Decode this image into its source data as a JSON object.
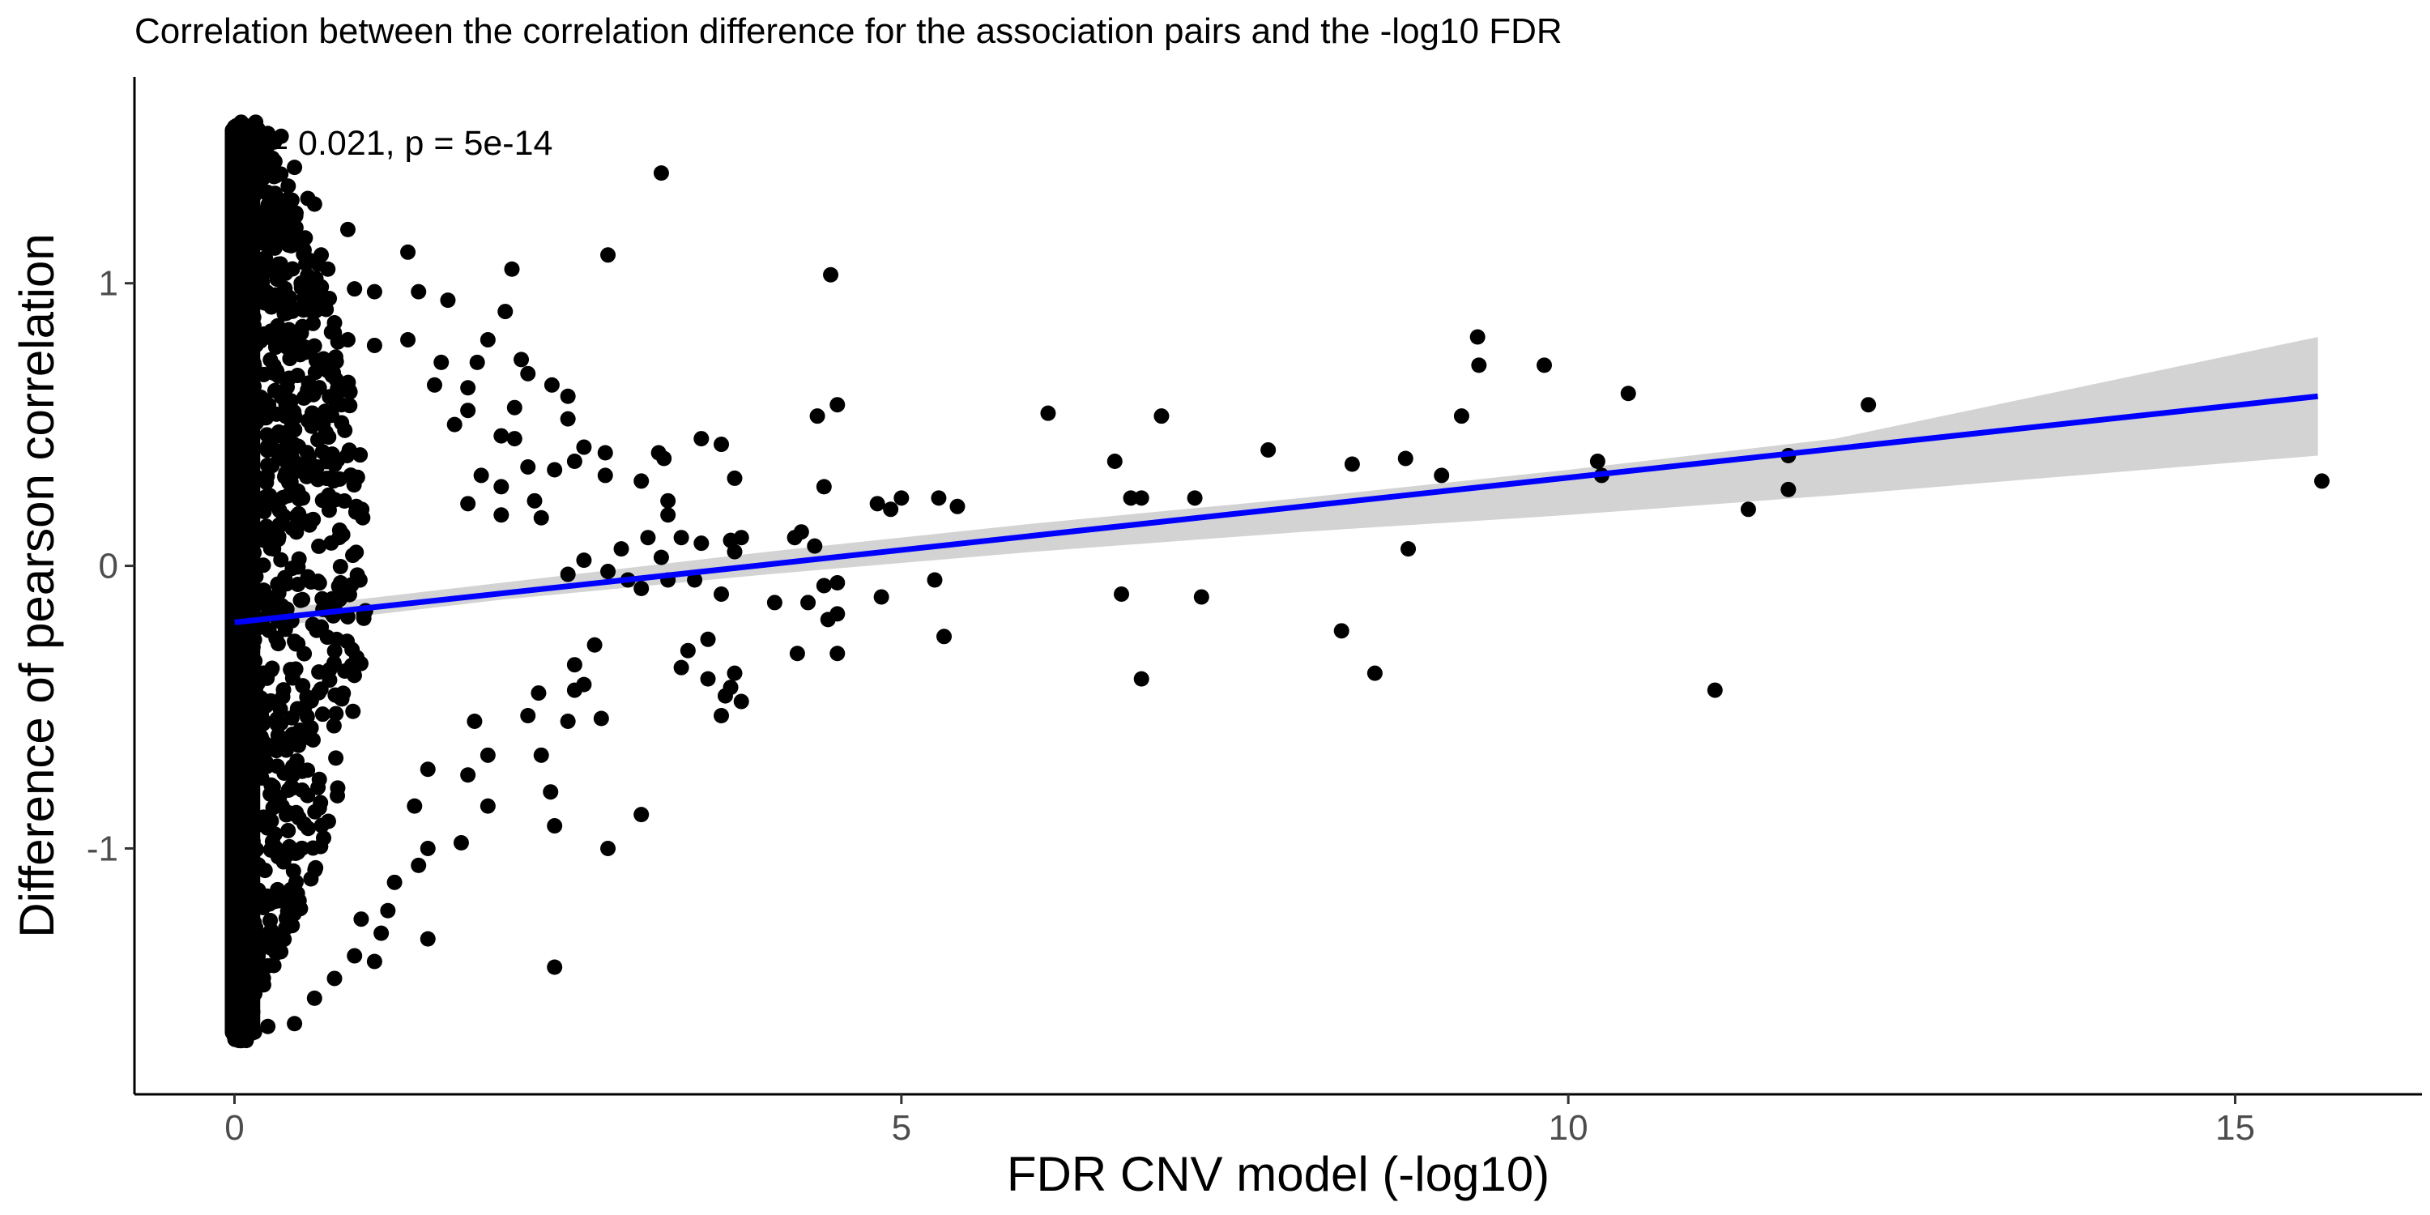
{
  "chart_data": {
    "type": "scatter",
    "title": "Correlation between the correlation difference for the association pairs and the -log10 FDR",
    "xlabel": "FDR CNV model (-log10)",
    "ylabel": "Difference of pearson correlation",
    "annotation": "R = 0.021, p = 5e-14",
    "xlim": [
      -0.75,
      16.4
    ],
    "ylim": [
      -1.87,
      1.73
    ],
    "x_ticks": [
      0,
      5,
      10,
      15
    ],
    "x_tick_labels": [
      "0",
      "5",
      "10",
      "15"
    ],
    "y_ticks": [
      -1,
      0,
      1
    ],
    "y_tick_labels": [
      "-1",
      "0",
      "1"
    ],
    "grid": false,
    "legend": "none",
    "dense_cluster": {
      "x_range": [
        0,
        1.0
      ],
      "y_range": [
        -1.68,
        1.57
      ],
      "description": "many overlapping points near x = 0"
    },
    "points": [
      [
        0.05,
        1.57
      ],
      [
        0.15,
        1.52
      ],
      [
        0.25,
        1.53
      ],
      [
        0.35,
        1.52
      ],
      [
        0.3,
        1.5
      ],
      [
        0.2,
        1.49
      ],
      [
        0.45,
        1.41
      ],
      [
        0.55,
        1.3
      ],
      [
        0.6,
        1.28
      ],
      [
        0.85,
        1.19
      ],
      [
        0.65,
        1.1
      ],
      [
        0.7,
        1.05
      ],
      [
        0.5,
        1.0
      ],
      [
        0.9,
        0.98
      ],
      [
        0.65,
        0.93
      ],
      [
        0.75,
        0.86
      ],
      [
        0.85,
        0.8
      ],
      [
        1.05,
        0.97
      ],
      [
        1.05,
        0.78
      ],
      [
        1.3,
        1.11
      ],
      [
        1.38,
        0.97
      ],
      [
        1.6,
        0.94
      ],
      [
        1.3,
        0.8
      ],
      [
        1.55,
        0.72
      ],
      [
        1.5,
        0.64
      ],
      [
        1.82,
        0.72
      ],
      [
        1.75,
        0.63
      ],
      [
        1.9,
        0.8
      ],
      [
        2.08,
        1.05
      ],
      [
        2.03,
        0.9
      ],
      [
        2.15,
        0.73
      ],
      [
        2.2,
        0.68
      ],
      [
        2.38,
        0.64
      ],
      [
        2.5,
        0.6
      ],
      [
        2.1,
        0.56
      ],
      [
        1.75,
        0.55
      ],
      [
        1.65,
        0.5
      ],
      [
        2.0,
        0.46
      ],
      [
        2.1,
        0.45
      ],
      [
        2.5,
        0.52
      ],
      [
        2.62,
        0.42
      ],
      [
        2.8,
        1.1
      ],
      [
        2.78,
        0.4
      ],
      [
        2.78,
        0.32
      ],
      [
        2.55,
        0.37
      ],
      [
        2.4,
        0.34
      ],
      [
        2.2,
        0.35
      ],
      [
        2.0,
        0.28
      ],
      [
        2.25,
        0.23
      ],
      [
        2.3,
        0.17
      ],
      [
        2.0,
        0.18
      ],
      [
        1.75,
        0.22
      ],
      [
        1.85,
        0.32
      ],
      [
        3.2,
        1.39
      ],
      [
        3.18,
        0.4
      ],
      [
        3.22,
        0.38
      ],
      [
        3.05,
        0.3
      ],
      [
        3.25,
        0.23
      ],
      [
        3.25,
        0.18
      ],
      [
        3.5,
        0.45
      ],
      [
        3.65,
        0.43
      ],
      [
        3.75,
        0.31
      ],
      [
        3.8,
        0.1
      ],
      [
        3.72,
        0.09
      ],
      [
        3.5,
        0.08
      ],
      [
        3.35,
        0.1
      ],
      [
        3.1,
        0.1
      ],
      [
        2.9,
        0.06
      ],
      [
        3.2,
        0.03
      ],
      [
        2.62,
        0.02
      ],
      [
        2.5,
        -0.03
      ],
      [
        2.95,
        -0.05
      ],
      [
        3.05,
        -0.08
      ],
      [
        2.8,
        -0.02
      ],
      [
        3.25,
        -0.05
      ],
      [
        3.65,
        -0.1
      ],
      [
        3.45,
        -0.05
      ],
      [
        3.75,
        0.05
      ],
      [
        4.05,
        -0.13
      ],
      [
        4.2,
        0.1
      ],
      [
        4.25,
        0.12
      ],
      [
        4.35,
        0.07
      ],
      [
        4.42,
        -0.07
      ],
      [
        4.52,
        -0.06
      ],
      [
        4.3,
        -0.13
      ],
      [
        4.45,
        -0.19
      ],
      [
        4.52,
        -0.17
      ],
      [
        4.42,
        0.28
      ],
      [
        4.47,
        1.03
      ],
      [
        4.37,
        0.53
      ],
      [
        4.52,
        0.57
      ],
      [
        4.82,
        0.22
      ],
      [
        4.92,
        0.2
      ],
      [
        5.0,
        0.24
      ],
      [
        5.28,
        0.24
      ],
      [
        5.42,
        0.21
      ],
      [
        4.85,
        -0.11
      ],
      [
        5.25,
        -0.05
      ],
      [
        5.32,
        -0.25
      ],
      [
        4.22,
        -0.31
      ],
      [
        4.52,
        -0.31
      ],
      [
        3.4,
        -0.3
      ],
      [
        3.55,
        -0.26
      ],
      [
        3.35,
        -0.36
      ],
      [
        3.55,
        -0.4
      ],
      [
        3.75,
        -0.38
      ],
      [
        3.72,
        -0.43
      ],
      [
        3.8,
        -0.48
      ],
      [
        3.68,
        -0.46
      ],
      [
        3.65,
        -0.53
      ],
      [
        2.7,
        -0.28
      ],
      [
        2.55,
        -0.35
      ],
      [
        2.62,
        -0.42
      ],
      [
        2.55,
        -0.44
      ],
      [
        2.75,
        -0.54
      ],
      [
        2.5,
        -0.55
      ],
      [
        2.28,
        -0.45
      ],
      [
        2.2,
        -0.53
      ],
      [
        2.3,
        -0.67
      ],
      [
        2.37,
        -0.8
      ],
      [
        2.4,
        -0.92
      ],
      [
        2.8,
        -1.0
      ],
      [
        3.05,
        -0.88
      ],
      [
        2.4,
        -1.42
      ],
      [
        1.8,
        -0.55
      ],
      [
        1.9,
        -0.67
      ],
      [
        1.9,
        -0.85
      ],
      [
        1.75,
        -0.74
      ],
      [
        1.7,
        -0.98
      ],
      [
        1.45,
        -0.72
      ],
      [
        1.35,
        -0.85
      ],
      [
        1.45,
        -1.0
      ],
      [
        1.38,
        -1.06
      ],
      [
        1.45,
        -1.32
      ],
      [
        1.2,
        -1.12
      ],
      [
        1.15,
        -1.22
      ],
      [
        1.1,
        -1.3
      ],
      [
        1.05,
        -1.4
      ],
      [
        0.95,
        -1.25
      ],
      [
        0.9,
        -1.38
      ],
      [
        0.75,
        -1.46
      ],
      [
        0.6,
        -1.53
      ],
      [
        0.45,
        -1.62
      ],
      [
        0.25,
        -1.63
      ],
      [
        0.05,
        -1.68
      ],
      [
        0.15,
        -1.65
      ],
      [
        6.1,
        0.54
      ],
      [
        6.6,
        0.37
      ],
      [
        6.72,
        0.24
      ],
      [
        6.8,
        0.24
      ],
      [
        6.95,
        0.53
      ],
      [
        7.2,
        0.24
      ],
      [
        7.75,
        0.41
      ],
      [
        6.65,
        -0.1
      ],
      [
        7.25,
        -0.11
      ],
      [
        6.8,
        -0.4
      ],
      [
        8.3,
        -0.23
      ],
      [
        8.38,
        0.36
      ],
      [
        8.78,
        0.38
      ],
      [
        9.05,
        0.32
      ],
      [
        9.2,
        0.53
      ],
      [
        9.32,
        0.81
      ],
      [
        9.33,
        0.71
      ],
      [
        9.82,
        0.71
      ],
      [
        8.8,
        0.06
      ],
      [
        8.55,
        -0.38
      ],
      [
        10.22,
        0.37
      ],
      [
        10.25,
        0.32
      ],
      [
        10.45,
        0.61
      ],
      [
        11.1,
        -0.44
      ],
      [
        11.35,
        0.2
      ],
      [
        11.65,
        0.39
      ],
      [
        11.65,
        0.27
      ],
      [
        12.25,
        0.57
      ],
      [
        15.65,
        0.3
      ]
    ],
    "regression_line": {
      "x": [
        0,
        15.62
      ],
      "y": [
        -0.2,
        0.6
      ],
      "color": "#0000ff"
    },
    "confidence_band": {
      "x": [
        0,
        2,
        4,
        6,
        8,
        10,
        12,
        15.62
      ],
      "lower": [
        -0.23,
        -0.12,
        -0.03,
        0.05,
        0.12,
        0.18,
        0.25,
        0.39
      ],
      "upper": [
        -0.17,
        -0.06,
        0.05,
        0.15,
        0.24,
        0.34,
        0.45,
        0.81
      ],
      "color": "#d3d3d3"
    },
    "point_color": "#000000"
  }
}
